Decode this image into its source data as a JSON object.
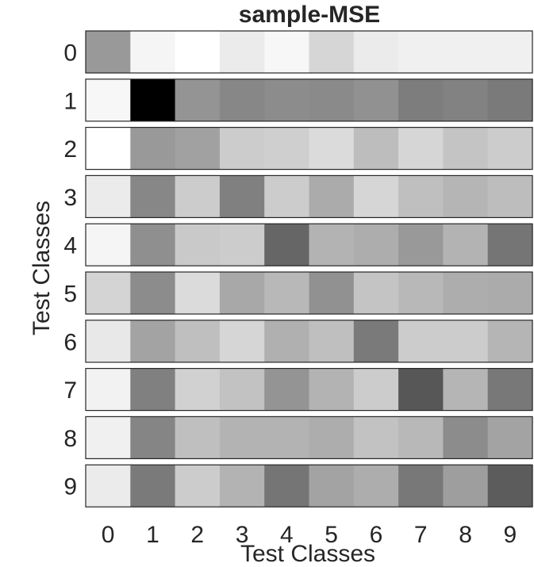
{
  "chart_data": {
    "type": "heatmap",
    "title": "sample-MSE",
    "xlabel": "Test Classes",
    "ylabel": "Test Classes",
    "x_ticks": [
      "0",
      "1",
      "2",
      "3",
      "4",
      "5",
      "6",
      "7",
      "8",
      "9"
    ],
    "y_ticks": [
      "0",
      "1",
      "2",
      "3",
      "4",
      "5",
      "6",
      "7",
      "8",
      "9"
    ],
    "colormap": "grayscale",
    "value_range": [
      0,
      1
    ],
    "values": [
      [
        0.6,
        0.96,
        1.0,
        0.92,
        0.97,
        0.84,
        0.92,
        0.94,
        0.94,
        0.94
      ],
      [
        0.97,
        0.0,
        0.58,
        0.53,
        0.55,
        0.54,
        0.57,
        0.49,
        0.51,
        0.48
      ],
      [
        1.0,
        0.6,
        0.63,
        0.8,
        0.81,
        0.86,
        0.74,
        0.84,
        0.77,
        0.8
      ],
      [
        0.92,
        0.53,
        0.8,
        0.5,
        0.8,
        0.67,
        0.84,
        0.75,
        0.71,
        0.74
      ],
      [
        0.96,
        0.56,
        0.79,
        0.8,
        0.4,
        0.7,
        0.68,
        0.6,
        0.7,
        0.46
      ],
      [
        0.83,
        0.55,
        0.86,
        0.66,
        0.72,
        0.57,
        0.77,
        0.72,
        0.68,
        0.67
      ],
      [
        0.91,
        0.64,
        0.75,
        0.84,
        0.69,
        0.75,
        0.48,
        0.8,
        0.8,
        0.71
      ],
      [
        0.95,
        0.5,
        0.82,
        0.76,
        0.58,
        0.7,
        0.8,
        0.34,
        0.71,
        0.47
      ],
      [
        0.94,
        0.52,
        0.75,
        0.7,
        0.7,
        0.68,
        0.76,
        0.72,
        0.55,
        0.64
      ],
      [
        0.92,
        0.48,
        0.8,
        0.7,
        0.46,
        0.64,
        0.68,
        0.47,
        0.62,
        0.36
      ]
    ]
  }
}
